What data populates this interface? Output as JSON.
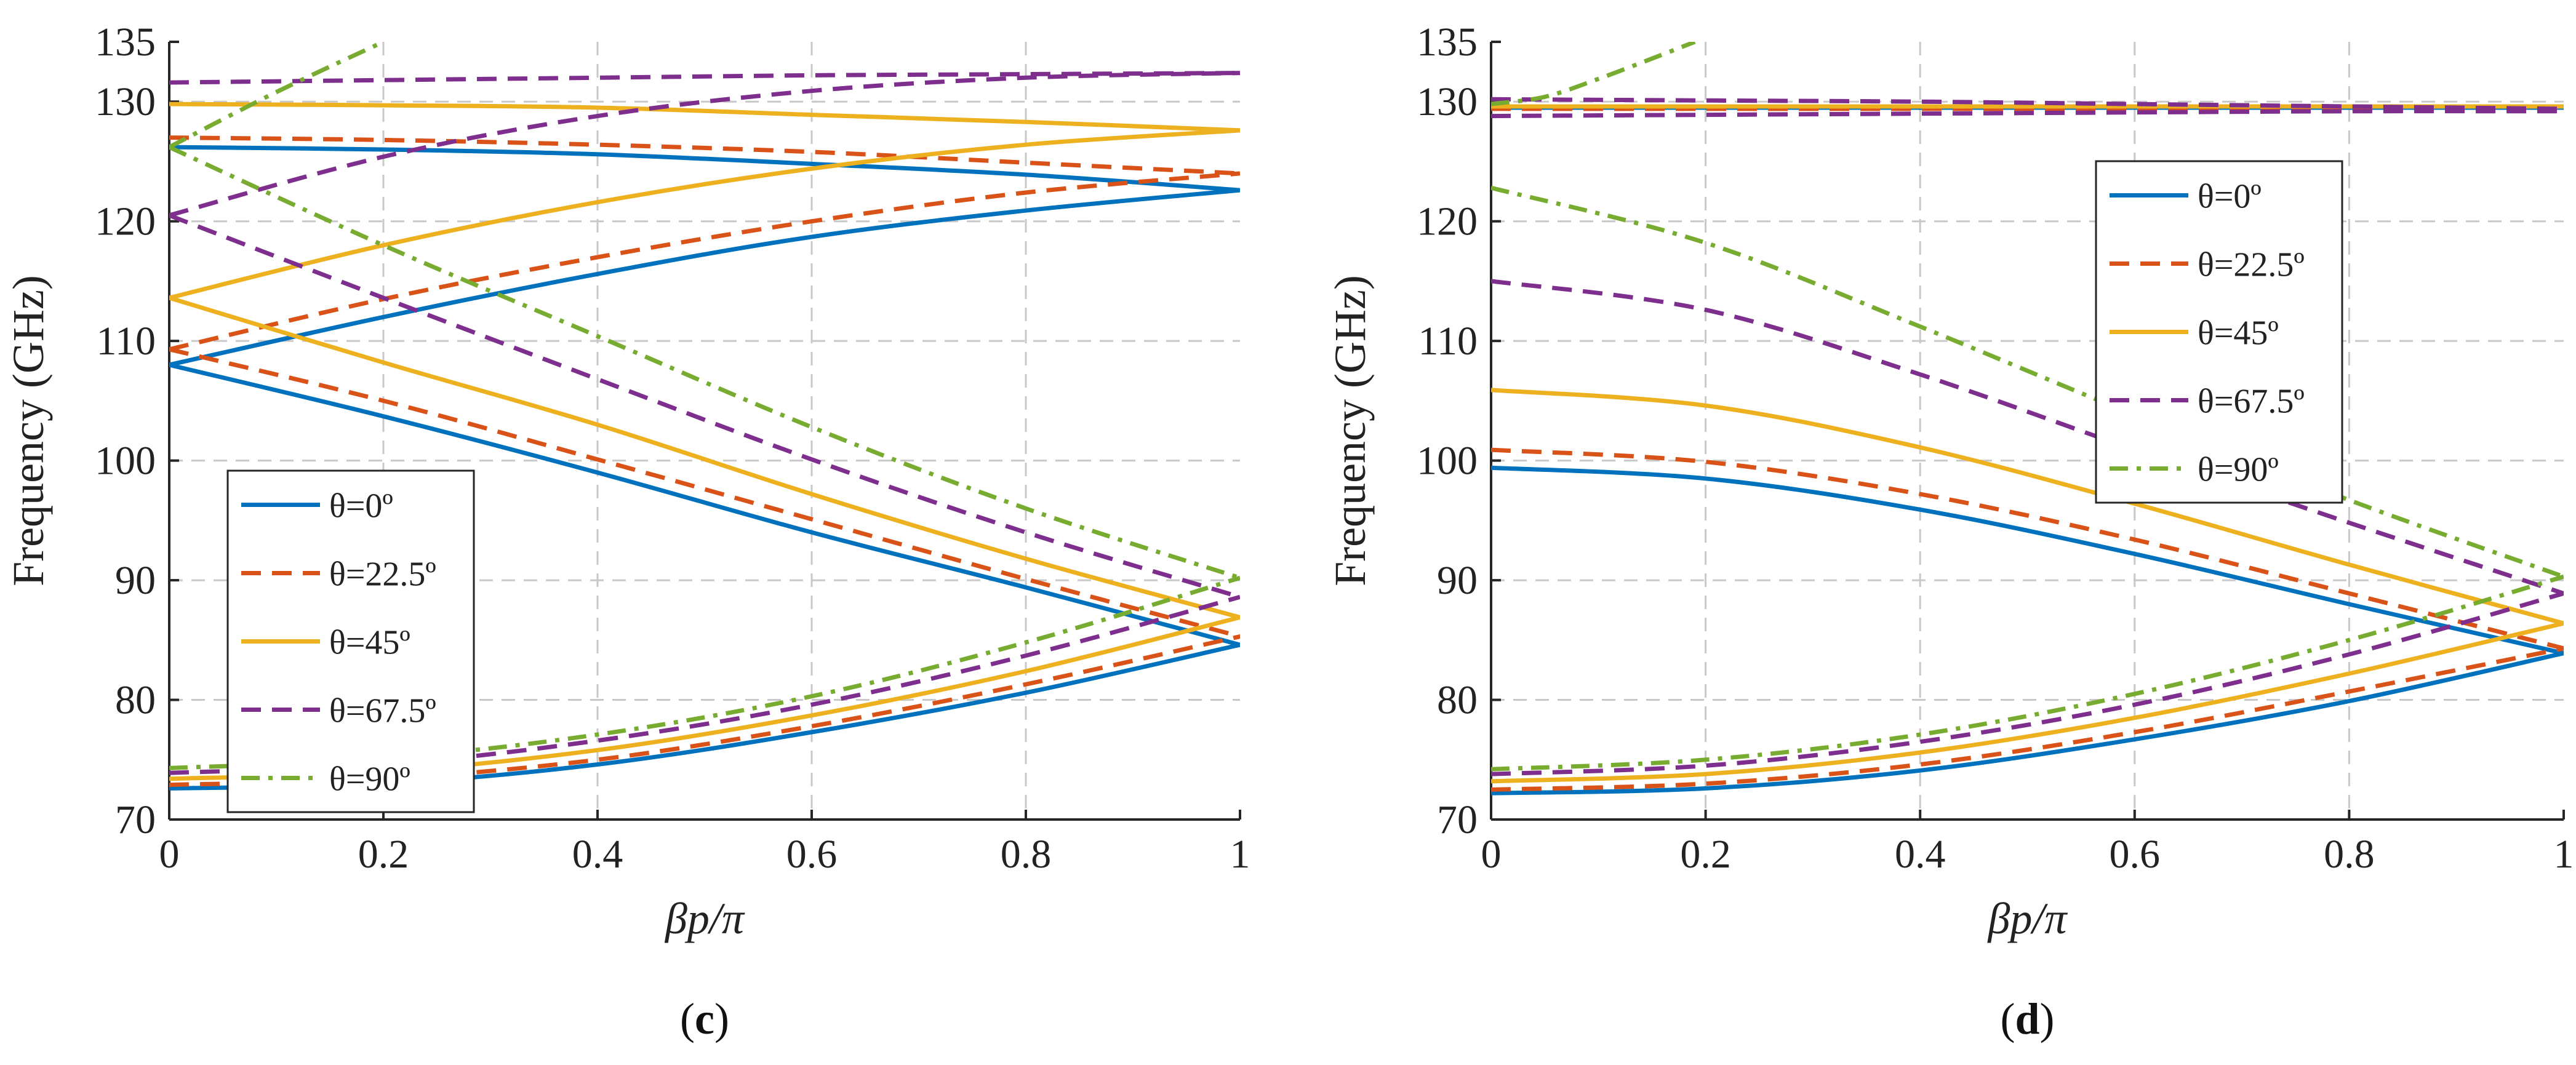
{
  "figure": {
    "background": "#ffffff"
  },
  "chart_data": [
    {
      "type": "line",
      "panel_label": "(c)",
      "panel_letter": "c",
      "xlabel": "βp/π",
      "ylabel": "Frequency (GHz)",
      "xlim": [
        0,
        1
      ],
      "ylim": [
        70,
        135
      ],
      "xticks": [
        0,
        0.2,
        0.4,
        0.6,
        0.8,
        1
      ],
      "xtick_labels": [
        "0",
        "0.2",
        "0.4",
        "0.6",
        "0.8",
        "1"
      ],
      "yticks": [
        70,
        80,
        90,
        100,
        110,
        120,
        130,
        135
      ],
      "ytick_labels": [
        "70",
        "80",
        "90",
        "100",
        "110",
        "120",
        "130",
        "135"
      ],
      "grid": true,
      "legend_position": "lower-left",
      "series": [
        {
          "name": "θ=0º",
          "color": "#0072BD",
          "dash": "solid",
          "segments": [
            {
              "x": [
                0,
                0.2,
                0.4,
                0.6,
                0.8,
                1
              ],
              "y": [
                72.6,
                73.0,
                74.6,
                77.3,
                80.6,
                84.6
              ]
            },
            {
              "x": [
                0,
                0.2,
                0.4,
                0.6,
                0.8,
                1
              ],
              "y": [
                108,
                103.7,
                99.0,
                94.0,
                89.4,
                84.6
              ]
            },
            {
              "x": [
                0,
                0.2,
                0.4,
                0.6,
                0.8,
                1
              ],
              "y": [
                108,
                112.0,
                115.6,
                118.7,
                120.9,
                122.6
              ]
            },
            {
              "x": [
                0,
                0.2,
                0.4,
                0.6,
                0.8,
                1
              ],
              "y": [
                126.2,
                126.0,
                125.6,
                124.8,
                123.9,
                122.6
              ]
            }
          ]
        },
        {
          "name": "θ=22.5º",
          "color": "#D95319",
          "dash": "dashed",
          "segments": [
            {
              "x": [
                0,
                0.2,
                0.4,
                0.6,
                0.8,
                1
              ],
              "y": [
                72.9,
                73.4,
                75.0,
                77.8,
                81.3,
                85.3
              ]
            },
            {
              "x": [
                0,
                0.2,
                0.4,
                0.6,
                0.8,
                1
              ],
              "y": [
                109.3,
                105.0,
                100.1,
                95.1,
                90.1,
                85.3
              ]
            },
            {
              "x": [
                0,
                0.2,
                0.4,
                0.6,
                0.8,
                1
              ],
              "y": [
                109.3,
                113.5,
                117.0,
                120.0,
                122.4,
                124.0
              ]
            },
            {
              "x": [
                0,
                0.2,
                0.4,
                0.6,
                0.8,
                1
              ],
              "y": [
                127.0,
                126.8,
                126.4,
                125.8,
                124.9,
                124.0
              ]
            }
          ]
        },
        {
          "name": "θ=45º",
          "color": "#EDB120",
          "dash": "solid",
          "segments": [
            {
              "x": [
                0,
                0.2,
                0.4,
                0.6,
                0.8,
                1
              ],
              "y": [
                73.4,
                74.0,
                75.8,
                78.7,
                82.4,
                86.9
              ]
            },
            {
              "x": [
                0,
                0.2,
                0.4,
                0.6,
                0.8,
                1
              ],
              "y": [
                113.6,
                108.2,
                103.0,
                97.2,
                91.8,
                86.9
              ]
            },
            {
              "x": [
                0,
                0.2,
                0.4,
                0.6,
                0.8,
                1
              ],
              "y": [
                113.6,
                118.0,
                121.6,
                124.4,
                126.4,
                127.6
              ]
            },
            {
              "x": [
                0,
                0.2,
                0.4,
                0.6,
                0.8,
                1
              ],
              "y": [
                129.8,
                129.7,
                129.5,
                128.9,
                128.3,
                127.6
              ]
            }
          ]
        },
        {
          "name": "θ=67.5º",
          "color": "#7E2F8E",
          "dash": "dashed",
          "segments": [
            {
              "x": [
                0,
                0.2,
                0.4,
                0.6,
                0.8,
                1
              ],
              "y": [
                73.9,
                74.6,
                76.6,
                79.6,
                83.7,
                88.6
              ]
            },
            {
              "x": [
                0,
                0.2,
                0.4,
                0.6,
                0.8,
                1
              ],
              "y": [
                120.5,
                113.6,
                106.8,
                100.1,
                94.0,
                88.6
              ]
            },
            {
              "x": [
                0,
                0.2,
                0.4,
                0.6,
                0.8,
                1
              ],
              "y": [
                120.5,
                125.4,
                128.8,
                130.9,
                132.0,
                132.4
              ]
            },
            {
              "x": [
                0,
                0.2,
                0.4,
                0.6,
                0.8,
                1
              ],
              "y": [
                131.6,
                131.8,
                132.0,
                132.2,
                132.3,
                132.4
              ]
            }
          ]
        },
        {
          "name": "θ=90º",
          "color": "#77AC30",
          "dash": "dashdot",
          "segments": [
            {
              "x": [
                0,
                0.2,
                0.4,
                0.6,
                0.8,
                1
              ],
              "y": [
                74.3,
                75.1,
                77.1,
                80.3,
                84.8,
                90.2
              ]
            },
            {
              "x": [
                0,
                0.2,
                0.4,
                0.6,
                0.8,
                1
              ],
              "y": [
                126.2,
                118.0,
                110.4,
                102.8,
                96.0,
                90.2
              ]
            },
            {
              "x": [
                0,
                0.1,
                0.2
              ],
              "y": [
                126.2,
                130.8,
                135.0
              ]
            }
          ]
        }
      ]
    },
    {
      "type": "line",
      "panel_label": "(d)",
      "panel_letter": "d",
      "xlabel": "βp/π",
      "ylabel": "Frequency (GHz)",
      "xlim": [
        0,
        1
      ],
      "ylim": [
        70,
        135
      ],
      "xticks": [
        0,
        0.2,
        0.4,
        0.6,
        0.8,
        1
      ],
      "xtick_labels": [
        "0",
        "0.2",
        "0.4",
        "0.6",
        "0.8",
        "1"
      ],
      "yticks": [
        70,
        80,
        90,
        100,
        110,
        120,
        130,
        135
      ],
      "ytick_labels": [
        "70",
        "80",
        "90",
        "100",
        "110",
        "120",
        "130",
        "135"
      ],
      "grid": true,
      "legend_position": "top-right",
      "series": [
        {
          "name": "θ=0º",
          "color": "#0072BD",
          "dash": "solid",
          "segments": [
            {
              "x": [
                0,
                0.2,
                0.4,
                0.6,
                0.8,
                1
              ],
              "y": [
                72.2,
                72.6,
                74.1,
                76.7,
                79.9,
                83.9
              ]
            },
            {
              "x": [
                0,
                0.2,
                0.4,
                0.6,
                0.8,
                1
              ],
              "y": [
                99.4,
                98.5,
                95.9,
                92.2,
                88.0,
                83.9
              ]
            },
            {
              "x": [
                0,
                0.2,
                0.4,
                0.6,
                0.8,
                1
              ],
              "y": [
                129.5,
                129.5,
                129.5,
                129.5,
                129.5,
                129.5
              ]
            }
          ]
        },
        {
          "name": "θ=22.5º",
          "color": "#D95319",
          "dash": "dashed",
          "segments": [
            {
              "x": [
                0,
                0.2,
                0.4,
                0.6,
                0.8,
                1
              ],
              "y": [
                72.5,
                73.0,
                74.6,
                77.3,
                80.7,
                84.3
              ]
            },
            {
              "x": [
                0,
                0.2,
                0.4,
                0.6,
                0.8,
                1
              ],
              "y": [
                100.9,
                99.9,
                97.2,
                93.4,
                88.9,
                84.3
              ]
            },
            {
              "x": [
                0,
                0.2,
                0.4,
                0.6,
                0.8,
                1
              ],
              "y": [
                129.4,
                129.4,
                129.4,
                129.4,
                129.4,
                129.4
              ]
            }
          ]
        },
        {
          "name": "θ=45º",
          "color": "#EDB120",
          "dash": "solid",
          "segments": [
            {
              "x": [
                0,
                0.2,
                0.4,
                0.6,
                0.8,
                1
              ],
              "y": [
                73.2,
                73.8,
                75.6,
                78.5,
                82.2,
                86.4
              ]
            },
            {
              "x": [
                0,
                0.2,
                0.4,
                0.6,
                0.8,
                1
              ],
              "y": [
                105.9,
                104.6,
                101.1,
                96.4,
                91.3,
                86.4
              ]
            },
            {
              "x": [
                0,
                0.2,
                0.4,
                0.6,
                0.8,
                1
              ],
              "y": [
                129.6,
                129.6,
                129.6,
                129.6,
                129.6,
                129.6
              ]
            }
          ]
        },
        {
          "name": "θ=67.5º",
          "color": "#7E2F8E",
          "dash": "dashed",
          "segments": [
            {
              "x": [
                0,
                0.2,
                0.4,
                0.6,
                0.8,
                1
              ],
              "y": [
                73.8,
                74.5,
                76.5,
                79.6,
                83.8,
                88.9
              ]
            },
            {
              "x": [
                0,
                0.2,
                0.4,
                0.6,
                0.8,
                1
              ],
              "y": [
                115.0,
                112.6,
                107.2,
                100.9,
                94.8,
                88.9
              ]
            },
            {
              "x": [
                0,
                0.2,
                0.4,
                0.6,
                0.8,
                1
              ],
              "y": [
                128.8,
                128.9,
                129.0,
                129.1,
                129.2,
                129.2
              ]
            },
            {
              "x": [
                0,
                0.2,
                0.4,
                0.6,
                0.8,
                1
              ],
              "y": [
                130.2,
                130.1,
                130.0,
                129.8,
                129.6,
                129.4
              ]
            }
          ]
        },
        {
          "name": "θ=90º",
          "color": "#77AC30",
          "dash": "dashdot",
          "segments": [
            {
              "x": [
                0,
                0.2,
                0.4,
                0.6,
                0.8,
                1
              ],
              "y": [
                74.2,
                75.0,
                77.1,
                80.5,
                85.0,
                90.3
              ]
            },
            {
              "x": [
                0,
                0.2,
                0.4,
                0.6,
                0.8,
                1
              ],
              "y": [
                122.8,
                118.2,
                111.2,
                103.8,
                96.7,
                90.3
              ]
            },
            {
              "x": [
                0,
                0.05,
                0.1,
                0.15,
                0.19
              ],
              "y": [
                129.8,
                130.4,
                131.9,
                133.6,
                135.0
              ]
            }
          ]
        }
      ]
    }
  ]
}
